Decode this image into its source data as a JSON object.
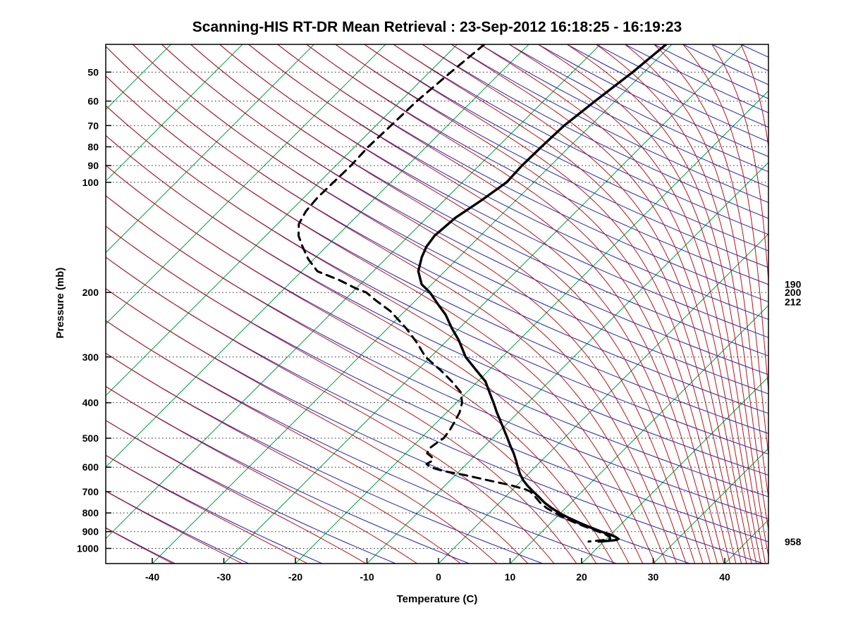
{
  "chart_data": {
    "type": "line",
    "variant": "skew-t-log-p-sounding",
    "title": "Scanning-HIS RT-DR Mean Retrieval : 23-Sep-2012 16:18:25 - 16:19:23",
    "xlabel": "Temperature (C)",
    "ylabel": "Pressure (mb)",
    "x_ticks": [
      -40,
      -30,
      -20,
      -10,
      0,
      10,
      20,
      30,
      40
    ],
    "pressure_ticks": [
      50,
      60,
      70,
      80,
      90,
      100,
      200,
      300,
      400,
      500,
      600,
      700,
      800,
      900,
      1000
    ],
    "pressure_range": [
      42,
      1100
    ],
    "grid": "dotted horizontal isobars at labeled pressures",
    "legend_position": "none",
    "right_labels": [
      {
        "pressure": 190,
        "label": "190"
      },
      {
        "pressure": 200,
        "label": "200"
      },
      {
        "pressure": 212,
        "label": "212"
      },
      {
        "pressure": 958,
        "label": "958"
      }
    ],
    "colors": {
      "isotherm": "#00a344",
      "dry_adiabat": "#2020b8",
      "moist_adiabat": "#c01010",
      "gridline": "#222222",
      "profile": "#000000"
    },
    "background": {
      "isotherms_c": {
        "from": -120,
        "to": 40,
        "step": 10
      },
      "dry_adiabats_theta_k": {
        "from": 220,
        "to": 600,
        "step": 10
      },
      "moist_adiabats_theta_k": {
        "from": 220,
        "to": 600,
        "step": 10
      }
    },
    "series": [
      {
        "name": "temperature",
        "style": "solid",
        "color": "#000000",
        "points": [
          [
            42,
            -40.8
          ],
          [
            50,
            -41.6
          ],
          [
            60,
            -42.8
          ],
          [
            70,
            -43.7
          ],
          [
            80,
            -43.9
          ],
          [
            90,
            -44.0
          ],
          [
            100,
            -43.8
          ],
          [
            112,
            -44.8
          ],
          [
            125,
            -46.0
          ],
          [
            140,
            -46.4
          ],
          [
            150,
            -46.0
          ],
          [
            160,
            -45.2
          ],
          [
            175,
            -43.7
          ],
          [
            190,
            -41.4
          ],
          [
            200,
            -39.1
          ],
          [
            215,
            -36.4
          ],
          [
            230,
            -33.8
          ],
          [
            250,
            -31.1
          ],
          [
            270,
            -28.4
          ],
          [
            300,
            -25.1
          ],
          [
            325,
            -21.9
          ],
          [
            350,
            -18.9
          ],
          [
            375,
            -16.8
          ],
          [
            400,
            -14.8
          ],
          [
            425,
            -13.0
          ],
          [
            450,
            -11.2
          ],
          [
            475,
            -9.5
          ],
          [
            500,
            -7.9
          ],
          [
            525,
            -6.4
          ],
          [
            550,
            -4.9
          ],
          [
            575,
            -3.6
          ],
          [
            600,
            -2.4
          ],
          [
            625,
            -1.2
          ],
          [
            650,
            0.1
          ],
          [
            675,
            1.6
          ],
          [
            700,
            3.2
          ],
          [
            725,
            4.8
          ],
          [
            750,
            6.3
          ],
          [
            775,
            8.0
          ],
          [
            800,
            9.8
          ],
          [
            825,
            11.8
          ],
          [
            850,
            13.9
          ],
          [
            875,
            16.1
          ],
          [
            900,
            18.3
          ],
          [
            915,
            19.8
          ],
          [
            930,
            21.0
          ],
          [
            942,
            21.7
          ],
          [
            948,
            21.6
          ],
          [
            953,
            20.8
          ],
          [
            958,
            19.3
          ]
        ]
      },
      {
        "name": "dewpoint",
        "style": "dashed",
        "color": "#000000",
        "points": [
          [
            42,
            -66.2
          ],
          [
            50,
            -67.0
          ],
          [
            60,
            -67.7
          ],
          [
            70,
            -67.9
          ],
          [
            80,
            -68.1
          ],
          [
            90,
            -67.9
          ],
          [
            100,
            -68.0
          ],
          [
            110,
            -68.1
          ],
          [
            120,
            -67.8
          ],
          [
            130,
            -67.0
          ],
          [
            140,
            -65.4
          ],
          [
            150,
            -63.3
          ],
          [
            162,
            -60.8
          ],
          [
            175,
            -57.8
          ],
          [
            185,
            -53.5
          ],
          [
            195,
            -50.0
          ],
          [
            200,
            -48.0
          ],
          [
            210,
            -45.6
          ],
          [
            225,
            -42.0
          ],
          [
            250,
            -37.5
          ],
          [
            275,
            -33.8
          ],
          [
            300,
            -30.7
          ],
          [
            325,
            -26.9
          ],
          [
            350,
            -23.6
          ],
          [
            375,
            -20.8
          ],
          [
            400,
            -19.2
          ],
          [
            425,
            -18.2
          ],
          [
            450,
            -17.6
          ],
          [
            475,
            -17.1
          ],
          [
            500,
            -16.8
          ],
          [
            520,
            -17.2
          ],
          [
            535,
            -17.4
          ],
          [
            550,
            -17.0
          ],
          [
            562,
            -15.9
          ],
          [
            575,
            -15.2
          ],
          [
            588,
            -15.6
          ],
          [
            600,
            -14.6
          ],
          [
            615,
            -12.2
          ],
          [
            630,
            -8.8
          ],
          [
            650,
            -5.0
          ],
          [
            670,
            -1.2
          ],
          [
            690,
            1.8
          ],
          [
            700,
            2.8
          ],
          [
            725,
            4.3
          ],
          [
            750,
            5.7
          ],
          [
            775,
            7.3
          ],
          [
            800,
            9.2
          ],
          [
            825,
            11.2
          ],
          [
            850,
            13.3
          ],
          [
            875,
            15.6
          ],
          [
            900,
            17.9
          ],
          [
            915,
            19.2
          ],
          [
            930,
            20.2
          ],
          [
            940,
            20.5
          ],
          [
            947,
            20.1
          ],
          [
            952,
            19.2
          ],
          [
            958,
            17.9
          ]
        ]
      }
    ]
  }
}
